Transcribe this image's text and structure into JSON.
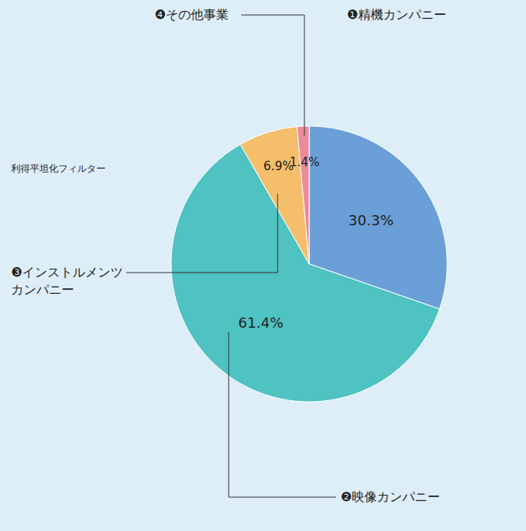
{
  "chart_data": {
    "type": "pie",
    "categories": [
      "❶精機カンパニー",
      "❷映像カンパニー",
      "❸インストルメンツカンパニー",
      "❹その他事業"
    ],
    "values": [
      30.3,
      61.4,
      6.9,
      1.4
    ],
    "value_labels": [
      "30.3%",
      "61.4%",
      "6.9%",
      "1.4%"
    ],
    "colors": [
      "#6b9fd8",
      "#4fc2c2",
      "#f5be6b",
      "#e98c9c"
    ],
    "data_labels": true,
    "annotations": [
      "利得平坦化フィルター"
    ]
  }
}
